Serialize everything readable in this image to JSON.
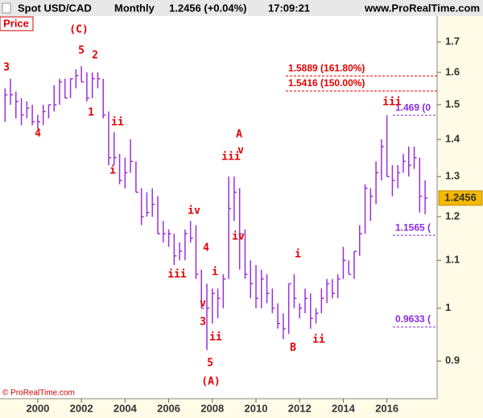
{
  "header": {
    "symbol": "Spot USD/CAD",
    "period": "Monthly",
    "quote": "1.2456 (+0.04%)",
    "time": "17:09:21",
    "site": "www.ProRealTime.com"
  },
  "panel_label": "Price",
  "copyright": "© ProRealTime.com",
  "chart_data": {
    "type": "ohlc",
    "log_scale": true,
    "color": "#9b30d9",
    "x": [
      1998.5,
      1998.75,
      1999.0,
      1999.25,
      1999.5,
      1999.75,
      2000.0,
      2000.25,
      2000.5,
      2000.75,
      2001.0,
      2001.25,
      2001.5,
      2001.75,
      2002.0,
      2002.25,
      2002.5,
      2002.75,
      2003.0,
      2003.25,
      2003.5,
      2003.75,
      2004.0,
      2004.25,
      2004.5,
      2004.75,
      2005.0,
      2005.25,
      2005.5,
      2005.75,
      2006.0,
      2006.25,
      2006.5,
      2006.75,
      2007.0,
      2007.25,
      2007.5,
      2007.75,
      2008.0,
      2008.25,
      2008.5,
      2008.75,
      2009.0,
      2009.25,
      2009.5,
      2009.75,
      2010.0,
      2010.25,
      2010.5,
      2010.75,
      2011.0,
      2011.25,
      2011.5,
      2011.75,
      2012.0,
      2012.25,
      2012.5,
      2012.75,
      2013.0,
      2013.25,
      2013.5,
      2013.75,
      2014.0,
      2014.25,
      2014.5,
      2014.75,
      2015.0,
      2015.25,
      2015.5,
      2015.75,
      2016.0,
      2016.25,
      2016.5,
      2016.75,
      2017.0,
      2017.25,
      2017.5,
      2017.75
    ],
    "high": [
      1.55,
      1.58,
      1.54,
      1.52,
      1.51,
      1.5,
      1.47,
      1.5,
      1.5,
      1.56,
      1.58,
      1.58,
      1.58,
      1.61,
      1.62,
      1.6,
      1.6,
      1.6,
      1.58,
      1.48,
      1.42,
      1.36,
      1.35,
      1.4,
      1.34,
      1.27,
      1.26,
      1.27,
      1.25,
      1.19,
      1.17,
      1.16,
      1.14,
      1.17,
      1.19,
      1.18,
      1.08,
      1.05,
      1.04,
      1.04,
      1.07,
      1.3,
      1.3,
      1.27,
      1.17,
      1.1,
      1.09,
      1.08,
      1.07,
      1.04,
      1.01,
      0.99,
      1.05,
      1.07,
      1.01,
      1.04,
      1.03,
      1.0,
      1.04,
      1.06,
      1.06,
      1.07,
      1.13,
      1.1,
      1.12,
      1.18,
      1.28,
      1.27,
      1.34,
      1.4,
      1.469,
      1.33,
      1.33,
      1.36,
      1.38,
      1.38,
      1.35,
      1.29
    ],
    "low": [
      1.45,
      1.5,
      1.46,
      1.44,
      1.46,
      1.44,
      1.43,
      1.44,
      1.46,
      1.48,
      1.5,
      1.52,
      1.52,
      1.55,
      1.57,
      1.51,
      1.52,
      1.55,
      1.46,
      1.33,
      1.33,
      1.28,
      1.27,
      1.31,
      1.26,
      1.18,
      1.2,
      1.2,
      1.16,
      1.14,
      1.13,
      1.09,
      1.1,
      1.1,
      1.14,
      1.06,
      1.0,
      0.92,
      0.97,
      0.98,
      1.0,
      1.06,
      1.19,
      1.08,
      1.06,
      1.02,
      1.0,
      1.0,
      1.01,
      0.99,
      0.96,
      0.94,
      0.95,
      1.0,
      0.98,
      0.99,
      0.96,
      0.97,
      0.99,
      1.01,
      1.02,
      1.02,
      1.06,
      1.07,
      1.06,
      1.11,
      1.16,
      1.19,
      1.23,
      1.29,
      1.3,
      1.25,
      1.27,
      1.31,
      1.3,
      1.32,
      1.21,
      1.2061
    ],
    "close": [
      1.53,
      1.53,
      1.51,
      1.47,
      1.49,
      1.45,
      1.45,
      1.48,
      1.5,
      1.5,
      1.57,
      1.52,
      1.58,
      1.59,
      1.57,
      1.52,
      1.58,
      1.58,
      1.47,
      1.35,
      1.35,
      1.29,
      1.31,
      1.34,
      1.26,
      1.2,
      1.21,
      1.23,
      1.16,
      1.16,
      1.16,
      1.11,
      1.12,
      1.16,
      1.15,
      1.07,
      1.0,
      1.0,
      1.03,
      1.02,
      1.06,
      1.22,
      1.26,
      1.16,
      1.07,
      1.05,
      1.02,
      1.06,
      1.03,
      1.0,
      0.97,
      0.96,
      1.05,
      1.02,
      1.0,
      1.02,
      0.98,
      0.99,
      1.02,
      1.05,
      1.03,
      1.06,
      1.1,
      1.07,
      1.12,
      1.16,
      1.27,
      1.25,
      1.31,
      1.38,
      1.3,
      1.29,
      1.31,
      1.34,
      1.33,
      1.35,
      1.25,
      1.2456
    ],
    "last_price": 1.2456,
    "xlim": [
      1998.27,
      2018.3
    ],
    "xticks": [
      2000,
      2002,
      2004,
      2006,
      2008,
      2010,
      2012,
      2014,
      2016
    ],
    "ylim": [
      0.835,
      1.79
    ],
    "yticks": [
      0.9,
      1,
      1.1,
      1.2,
      1.3,
      1.4,
      1.5,
      1.6,
      1.7
    ],
    "levels": [
      {
        "value": 1.5889,
        "label": "1.5889 (161.80%)",
        "color": "#e00000"
      },
      {
        "value": 1.5416,
        "label": "1.5416 (150.00%)",
        "color": "#e00000"
      },
      {
        "value": 1.469,
        "label": "1.469 (0",
        "color": "#8a2be2"
      },
      {
        "value": 1.1565,
        "label": "1.1565 (",
        "color": "#8a2be2"
      },
      {
        "value": 0.9633,
        "label": "0.9633 (",
        "color": "#8a2be2"
      }
    ],
    "annotations": [
      "3",
      "4",
      "5",
      "2",
      "(C)",
      "1",
      "ii",
      "i",
      "iv",
      "4",
      "iii",
      "i",
      "v",
      "3",
      "ii",
      "5",
      "(A)",
      "A",
      "v",
      "iii",
      "iv",
      "i",
      "B",
      "ii",
      "iii"
    ]
  }
}
